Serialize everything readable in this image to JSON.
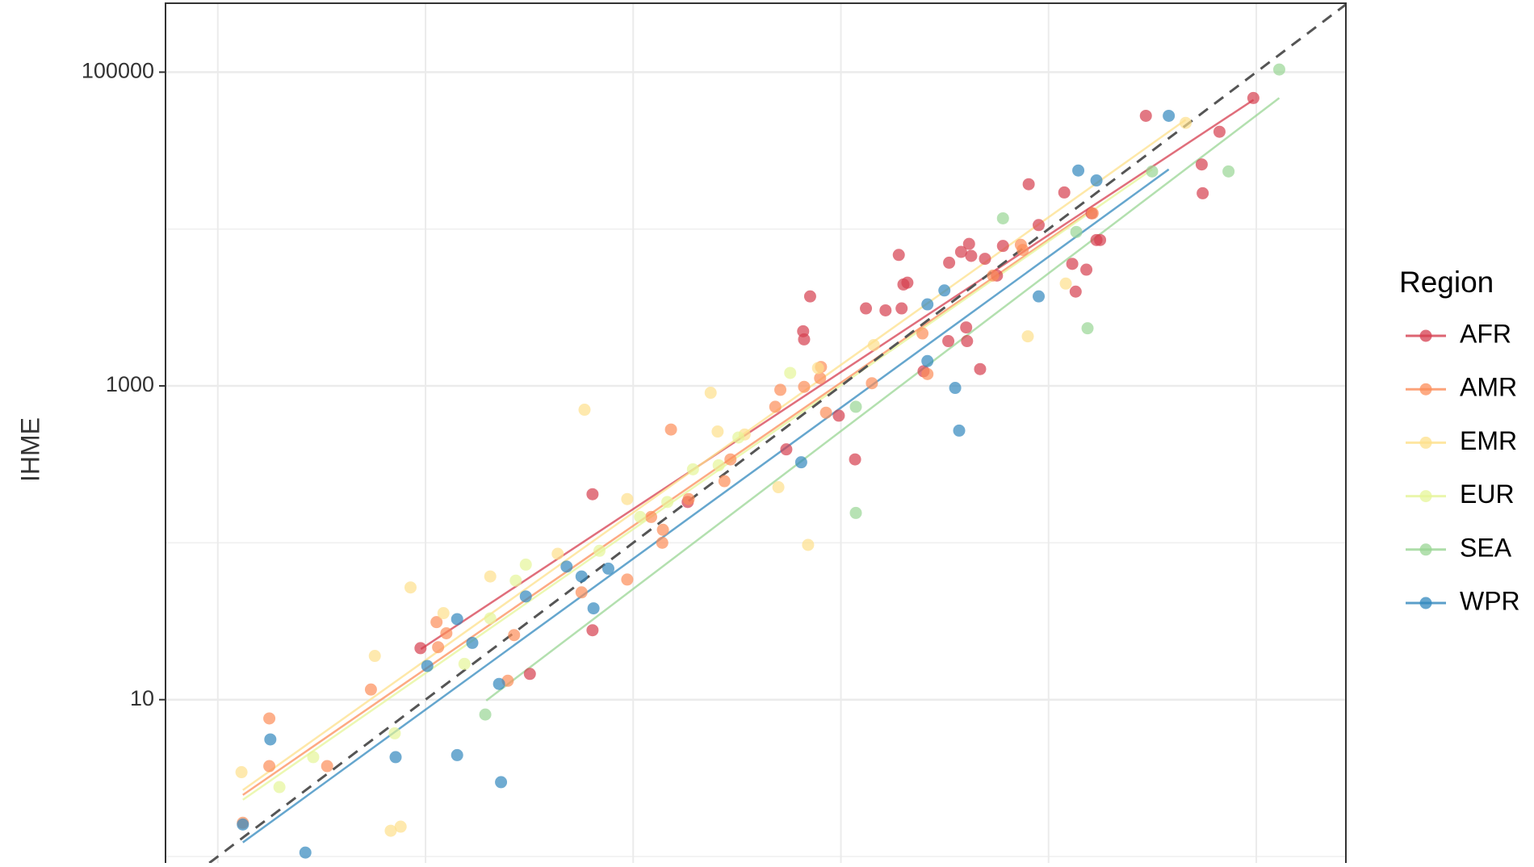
{
  "chart_data": {
    "type": "scatter",
    "y_label": "IHME",
    "legend_title": "Region",
    "log_x": true,
    "log_y": true,
    "grid": true,
    "legend": "right",
    "reference_line": "dashed",
    "xlim": [
      0.56,
      270000
    ],
    "ylim": [
      0.91,
      275000
    ],
    "xgrid": [
      1,
      10,
      100,
      1000,
      10000,
      100000
    ],
    "yticks": [
      10,
      1000,
      100000
    ],
    "ygrid_minor": [
      1,
      100,
      10000
    ],
    "series": [
      {
        "name": "AFR",
        "color": "#d53e4f",
        "x": [
          29400,
          96800,
          66500,
          54600,
          55200,
          8020,
          11900,
          16100,
          8960,
          17700,
          17000,
          13000,
          15200,
          13500,
          6030,
          4140,
          3790,
          4240,
          3320,
          4940,
          5640,
          1900,
          2090,
          2000,
          711,
          1320,
          1640,
          1960,
          658,
          665,
          4010,
          3290,
          4050,
          4680,
          2500,
          977,
          1170,
          546,
          63.7,
          183,
          9.46,
          31.8,
          63.7
        ],
        "values": [
          52700,
          68400,
          41700,
          25800,
          16900,
          19300,
          17100,
          12600,
          10600,
          8510,
          8510,
          6000,
          5510,
          3990,
          7800,
          8040,
          7150,
          6740,
          6100,
          6460,
          5050,
          6840,
          4550,
          4430,
          3720,
          3120,
          3030,
          3120,
          2230,
          1980,
          2360,
          1930,
          1930,
          1280,
          1240,
          646,
          340,
          394,
          204,
          182,
          21.3,
          14.6,
          27.7
        ],
        "fit_x": [
          9.5,
          97000
        ],
        "fit_y": [
          21,
          66600
        ]
      },
      {
        "name": "AMR",
        "color": "#fc8d59",
        "x": [
          16300,
          7350,
          7510,
          5400,
          2470,
          2610,
          802,
          794,
          1410,
          665,
          511,
          483,
          848,
          152,
          294,
          275,
          122,
          139,
          138,
          185,
          93.6,
          56.4,
          26.7,
          24.9,
          11.3,
          11.5,
          12.6,
          5.46,
          1.77,
          1.77,
          3.36,
          1.32
        ],
        "values": [
          12600,
          7930,
          7360,
          5050,
          2160,
          1190,
          1320,
          1120,
          1040,
          986,
          944,
          736,
          675,
          527,
          340,
          247,
          146,
          121,
          100,
          190,
          58.3,
          48.3,
          25.8,
          13.2,
          31.2,
          21.6,
          26.5,
          11.6,
          7.59,
          3.77,
          3.77,
          1.64
        ],
        "fit_x": [
          1.32,
          16300
        ],
        "fit_y": [
          2.47,
          13400
        ]
      },
      {
        "name": "EMR",
        "color": "#fee08b",
        "x": [
          45700,
          12100,
          7940,
          1440,
          776,
          236,
          255,
          344,
          500,
          695,
          58.3,
          93.6,
          43.3,
          20.5,
          12.2,
          8.47,
          5.7,
          1.3,
          7.59,
          6.8
        ],
        "values": [
          47500,
          4490,
          2070,
          1820,
          1300,
          904,
          512,
          490,
          226,
          97,
          705,
          190,
          85.1,
          61,
          35.6,
          51.9,
          19,
          3.45,
          1.55,
          1.46
        ],
        "fit_x": [
          1.32,
          45700
        ],
        "fit_y": [
          2.65,
          49700
        ]
      },
      {
        "name": "EUR",
        "color": "#e6f598",
        "x": [
          570,
          321,
          258,
          146,
          108,
          30.4,
          27.2,
          20.5,
          7.11,
          1.98,
          2.88,
          15.4,
          68.8,
          194
        ],
        "values": [
          1210,
          469,
          312,
          182,
          146,
          72.6,
          57.4,
          33,
          6.1,
          2.77,
          4.3,
          16.9,
          88.9,
          294
        ],
        "fit_x": [
          1.32,
          31500
        ],
        "fit_y": [
          2.3,
          24000
        ]
      },
      {
        "name": "SEA",
        "color": "#99d594",
        "x": [
          129000,
          73500,
          31500,
          6030,
          13600,
          15400,
          1180,
          1180,
          19.4
        ],
        "values": [
          104000,
          23300,
          23300,
          11700,
          9580,
          2330,
          736,
          155,
          8.04
        ],
        "fit_x": [
          19.6,
          129000
        ],
        "fit_y": [
          9.86,
          68400
        ]
      },
      {
        "name": "WPR",
        "color": "#3288bd",
        "x": [
          37900,
          13900,
          17000,
          2610,
          3150,
          8960,
          2610,
          3550,
          3710,
          644,
          75.9,
          56.4,
          64.4,
          47.8,
          30.4,
          16.8,
          14.2,
          10.2,
          22.6,
          7.18,
          14.2,
          23.1,
          1.79,
          1.32,
          2.64
        ],
        "values": [
          52700,
          23600,
          20400,
          3310,
          4060,
          3720,
          1440,
          971,
          519,
          326,
          68.4,
          61,
          38.2,
          70.5,
          45.5,
          23,
          32.6,
          16.4,
          12.6,
          4.3,
          4.43,
          2.98,
          5.58,
          1.6,
          1.06
        ],
        "fit_x": [
          1.32,
          37900
        ],
        "fit_y": [
          1.23,
          24000
        ]
      }
    ]
  }
}
